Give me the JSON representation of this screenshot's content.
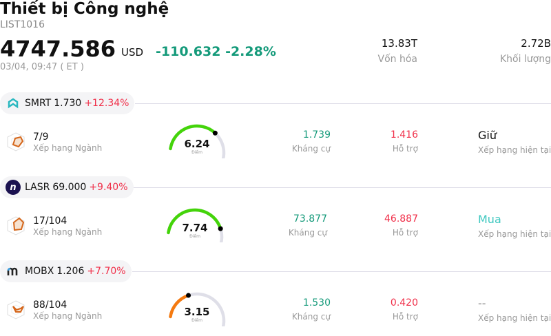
{
  "header": {
    "title": "Thiết bị Công nghệ",
    "code": "LIST1016",
    "price": "4747.586",
    "currency": "USD",
    "change": "-110.632",
    "change_pct": "-2.28%",
    "time": "03/04, 09:47  ( ET )",
    "market_cap": {
      "value": "13.83T",
      "label": "Vốn hóa"
    },
    "volume": {
      "value": "2.72B",
      "label": "Khối lượng"
    }
  },
  "colors": {
    "up": "#f0304a",
    "down": "#149a7a",
    "gauge_high": "#44d40a",
    "gauge_low": "#f57a10",
    "buy": "#3fc8c0"
  },
  "stocks": [
    {
      "ticker": "SMRT",
      "price": "1.730",
      "change": "+12.34%",
      "logo": "smrt-logo",
      "rank": "7/9",
      "rank_label": "Xếp hạng Ngành",
      "score": "6.24",
      "score_label": "Điểm",
      "score_value": 6.24,
      "resistance": "1.739",
      "resistance_label": "Kháng cự",
      "support": "1.416",
      "support_label": "Hỗ trợ",
      "rating": "Giữ",
      "rating_label": "Xếp hạng hiện tại"
    },
    {
      "ticker": "LASR",
      "price": "69.000",
      "change": "+9.40%",
      "logo": "lasr-logo",
      "rank": "17/104",
      "rank_label": "Xếp hạng Ngành",
      "score": "7.74",
      "score_label": "Điểm",
      "score_value": 7.74,
      "resistance": "73.877",
      "resistance_label": "Kháng cự",
      "support": "46.887",
      "support_label": "Hỗ trợ",
      "rating": "Mua",
      "rating_label": "Xếp hạng hiện tại"
    },
    {
      "ticker": "MOBX",
      "price": "1.206",
      "change": "+7.70%",
      "logo": "mobx-logo",
      "rank": "88/104",
      "rank_label": "Xếp hạng Ngành",
      "score": "3.15",
      "score_label": "Điểm",
      "score_value": 3.15,
      "resistance": "1.530",
      "resistance_label": "Kháng cự",
      "support": "0.420",
      "support_label": "Hỗ trợ",
      "rating": "--",
      "rating_label": "Xếp hạng hiện tại"
    }
  ]
}
